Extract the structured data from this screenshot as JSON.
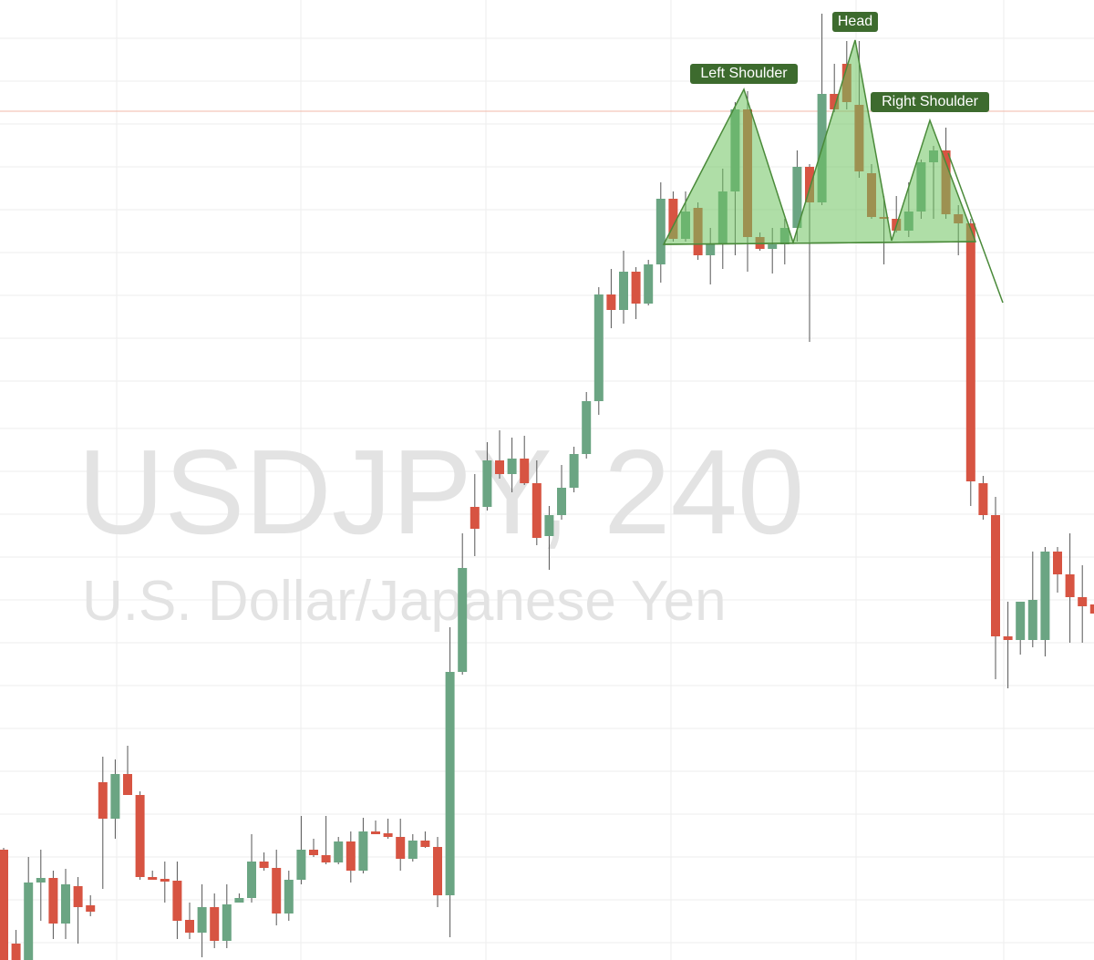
{
  "chart_data": {
    "type": "candlestick",
    "title": "USDJPY, 240",
    "subtitle": "U.S. Dollar/Japanese Yen",
    "annotations": [
      "Left Shoulder",
      "Head",
      "Right Shoulder"
    ],
    "ylim": [
      0,
      1053
    ],
    "up_color": "#6ba583",
    "down_color": "#d75442",
    "open": [
      121,
      18,
      0,
      85,
      90,
      40,
      81,
      60,
      195,
      155,
      204,
      181,
      91,
      89,
      87,
      44,
      30,
      58,
      21,
      63,
      68,
      108,
      101,
      51,
      88,
      121,
      115,
      107,
      130,
      98,
      141,
      139,
      135,
      111,
      131,
      124,
      71,
      316,
      497,
      497,
      548,
      533,
      550,
      523,
      465,
      488,
      518,
      555,
      613,
      730,
      713,
      755,
      720,
      763,
      835,
      791,
      825,
      773,
      786,
      843,
      933,
      793,
      780,
      785,
      803,
      870,
      831,
      950,
      983,
      938,
      863,
      815,
      813,
      800,
      821,
      875,
      888,
      818,
      808,
      523,
      488,
      355,
      351,
      351,
      351,
      448,
      423,
      398,
      390
    ],
    "high": [
      123,
      33,
      113,
      121,
      98,
      100,
      91,
      71,
      223,
      220,
      235,
      185,
      98,
      108,
      108,
      63,
      83,
      73,
      83,
      73,
      138,
      118,
      121,
      98,
      158,
      133,
      158,
      135,
      141,
      156,
      153,
      155,
      155,
      138,
      141,
      135,
      365,
      468,
      533,
      568,
      581,
      573,
      575,
      548,
      498,
      543,
      563,
      623,
      738,
      758,
      778,
      760,
      768,
      853,
      843,
      843,
      831,
      803,
      868,
      941,
      953,
      798,
      803,
      813,
      888,
      873,
      1038,
      983,
      1008,
      1008,
      873,
      838,
      838,
      853,
      878,
      893,
      913,
      828,
      813,
      531,
      508,
      393,
      393,
      448,
      453,
      453,
      468,
      433,
      428
    ],
    "low": [
      0,
      0,
      0,
      43,
      23,
      23,
      18,
      48,
      78,
      133,
      183,
      88,
      88,
      63,
      23,
      23,
      3,
      13,
      13,
      63,
      63,
      98,
      38,
      43,
      83,
      113,
      105,
      105,
      85,
      95,
      138,
      133,
      98,
      108,
      123,
      58,
      25,
      313,
      443,
      493,
      528,
      513,
      521,
      455,
      428,
      483,
      513,
      550,
      598,
      693,
      698,
      703,
      718,
      743,
      788,
      788,
      768,
      741,
      758,
      773,
      755,
      778,
      753,
      763,
      788,
      678,
      828,
      930,
      933,
      858,
      813,
      763,
      798,
      793,
      813,
      813,
      813,
      773,
      498,
      483,
      308,
      298,
      335,
      343,
      333,
      403,
      348,
      348,
      353
    ],
    "close": [
      0,
      0,
      85,
      90,
      40,
      83,
      58,
      53,
      155,
      204,
      181,
      91,
      88,
      86,
      43,
      30,
      58,
      21,
      61,
      68,
      108,
      101,
      51,
      88,
      121,
      115,
      107,
      130,
      98,
      141,
      138,
      135,
      111,
      131,
      124,
      71,
      316,
      430,
      473,
      548,
      533,
      550,
      523,
      463,
      488,
      518,
      555,
      613,
      730,
      713,
      755,
      720,
      763,
      835,
      791,
      821,
      773,
      786,
      843,
      933,
      793,
      780,
      785,
      803,
      870,
      831,
      950,
      933,
      941,
      865,
      815,
      813,
      800,
      821,
      875,
      888,
      818,
      808,
      525,
      488,
      355,
      351,
      393,
      395,
      448,
      423,
      398,
      388,
      380
    ]
  }
}
